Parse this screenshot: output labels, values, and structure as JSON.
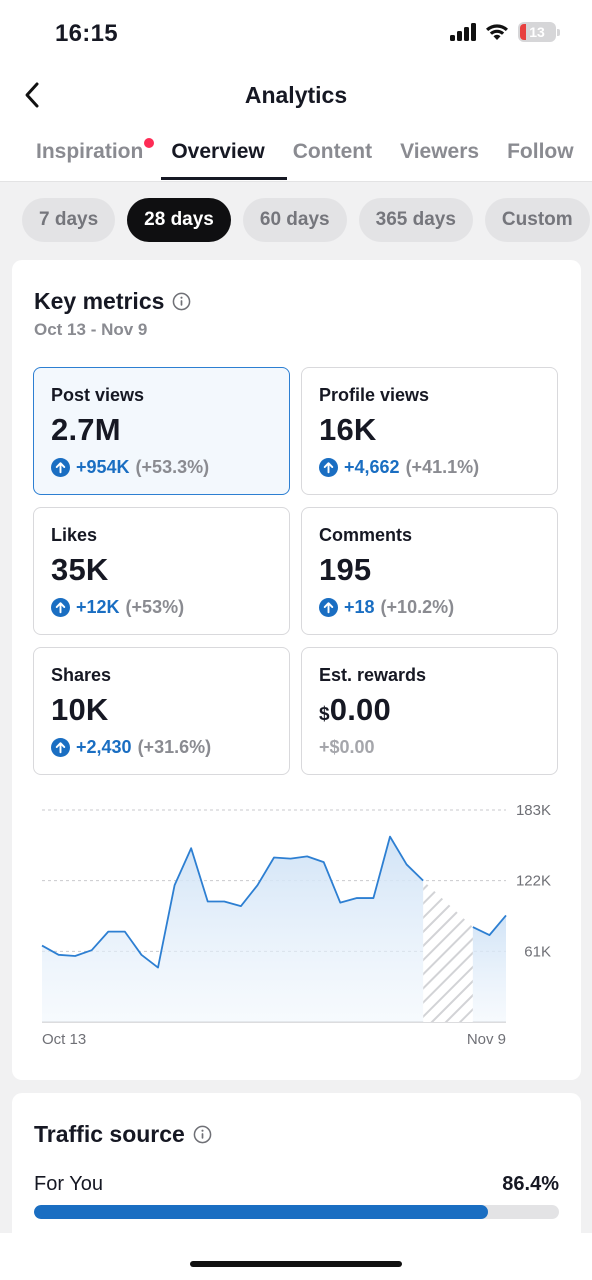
{
  "status_bar": {
    "time": "16:15",
    "battery": "13"
  },
  "header": {
    "title": "Analytics"
  },
  "tabs": [
    {
      "label": "Inspiration",
      "has_dot": true
    },
    {
      "label": "Overview",
      "active": true
    },
    {
      "label": "Content"
    },
    {
      "label": "Viewers"
    },
    {
      "label": "Follow"
    }
  ],
  "chips": [
    {
      "label": "7 days"
    },
    {
      "label": "28 days",
      "active": true
    },
    {
      "label": "60 days"
    },
    {
      "label": "365 days"
    },
    {
      "label": "Custom"
    }
  ],
  "key_metrics": {
    "title": "Key metrics",
    "date_range": "Oct 13 - Nov 9",
    "items": [
      {
        "label": "Post views",
        "value": "2.7M",
        "delta": "+954K",
        "pct": "(+53.3%)"
      },
      {
        "label": "Profile views",
        "value": "16K",
        "delta": "+4,662",
        "pct": "(+41.1%)"
      },
      {
        "label": "Likes",
        "value": "35K",
        "delta": "+12K",
        "pct": "(+53%)"
      },
      {
        "label": "Comments",
        "value": "195",
        "delta": "+18",
        "pct": "(+10.2%)"
      },
      {
        "label": "Shares",
        "value": "10K",
        "delta": "+2,430",
        "pct": "(+31.6%)"
      },
      {
        "label": "Est. rewards",
        "currency": "$",
        "value": "0.00",
        "delta": "+$0.00"
      }
    ]
  },
  "chart_data": {
    "type": "area",
    "x_labels": [
      "Oct 13",
      "Nov 9"
    ],
    "y_ticks": [
      "183K",
      "122K",
      "61K"
    ],
    "ylim": [
      0,
      183000
    ],
    "values": [
      66000,
      58000,
      57000,
      62000,
      78000,
      78000,
      58000,
      47000,
      118000,
      150000,
      104000,
      104000,
      100000,
      118000,
      142000,
      141000,
      143000,
      138000,
      103000,
      107000,
      107000,
      160000,
      136000,
      122000,
      null,
      null,
      82000,
      75000,
      92000
    ],
    "hatched_range": [
      "Nov 5",
      "Nov 7"
    ],
    "colors": {
      "line": "#2d7fd2",
      "fill": "#d8e7f7"
    }
  },
  "traffic_source": {
    "title": "Traffic source",
    "items": [
      {
        "label": "For You",
        "pct": "86.4%",
        "value": 0.864
      }
    ]
  },
  "colors": {
    "accent_blue": "#1a6ec2",
    "notification": "#fe2c55"
  }
}
